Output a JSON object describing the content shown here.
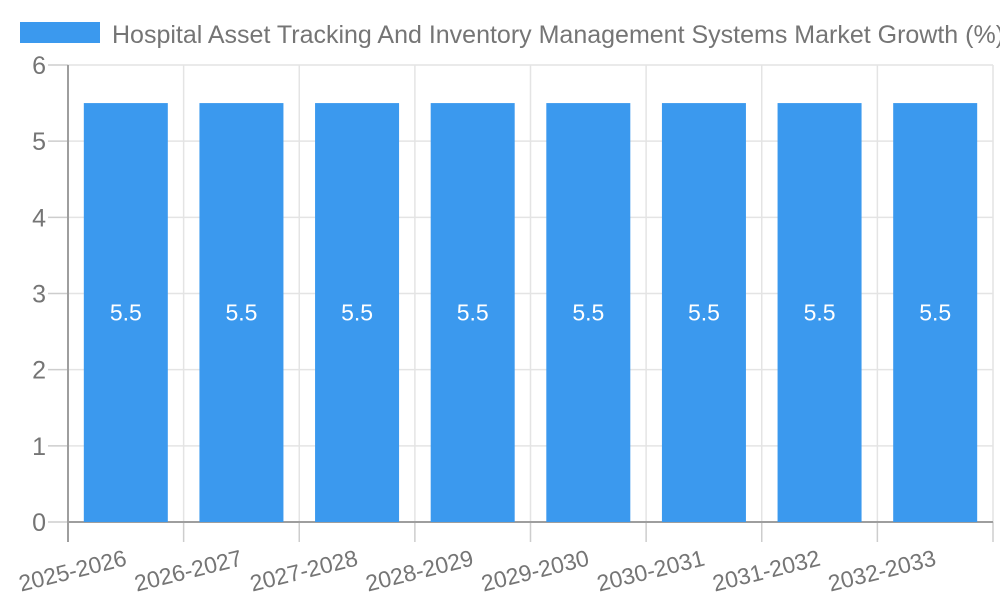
{
  "legend": {
    "label": "Hospital Asset Tracking And Inventory Management Systems Market Growth (%)"
  },
  "colors": {
    "bar": "#3B99EE",
    "grid": "#E4E4E4",
    "axis": "#9E9E9E",
    "tick": "#CDCDCD",
    "text": "#757575",
    "bar_label": "#FFFFFF",
    "background": "#FFFFFF"
  },
  "chart_data": {
    "type": "bar",
    "title": "Hospital Asset Tracking And Inventory Management Systems Market Growth (%)",
    "categories": [
      "2025-2026",
      "2026-2027",
      "2027-2028",
      "2028-2029",
      "2029-2030",
      "2030-2031",
      "2031-2032",
      "2032-2033"
    ],
    "values": [
      5.5,
      5.5,
      5.5,
      5.5,
      5.5,
      5.5,
      5.5,
      5.5
    ],
    "value_labels": [
      "5.5",
      "5.5",
      "5.5",
      "5.5",
      "5.5",
      "5.5",
      "5.5",
      "5.5"
    ],
    "xlabel": "",
    "ylabel": "",
    "ylim": [
      0,
      6
    ],
    "yticks": [
      0,
      1,
      2,
      3,
      4,
      5,
      6
    ],
    "grid": true,
    "legend_position": "top-left",
    "bar_label_position": "center"
  }
}
